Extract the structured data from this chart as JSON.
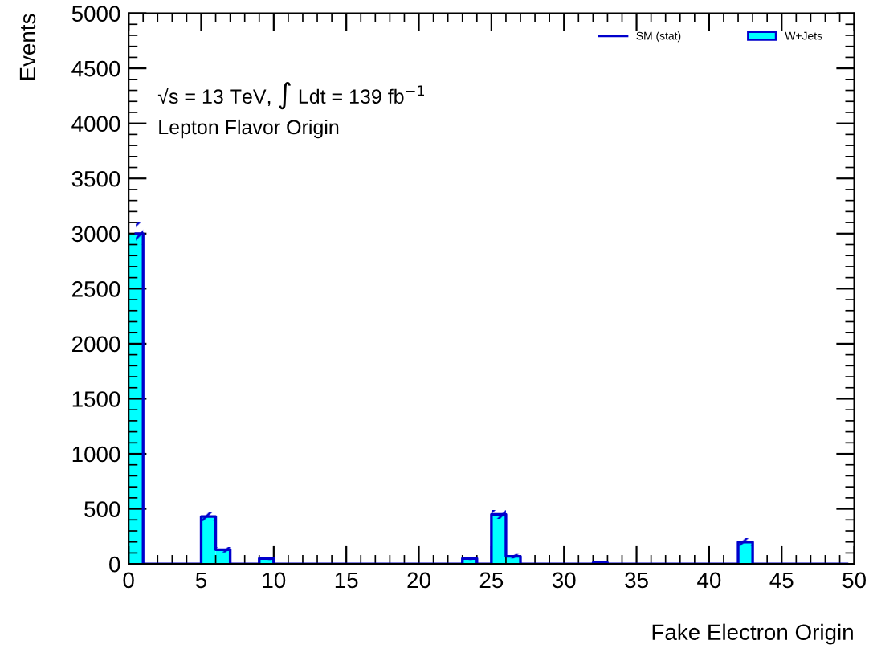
{
  "chart_data": {
    "type": "histogram",
    "xlabel": "Fake Electron Origin",
    "ylabel": "Events",
    "annotations": [
      "√s = 13 TeV, ∫ Ldt = 139 fb$^{−1}$",
      "Lepton Flavor Origin"
    ],
    "bins": [
      0,
      1,
      2,
      3,
      4,
      5,
      6,
      7,
      8,
      9,
      10,
      11,
      12,
      13,
      14,
      15,
      16,
      17,
      18,
      19,
      20,
      21,
      22,
      23,
      24,
      25,
      26,
      27,
      28,
      29,
      30,
      31,
      32,
      33,
      34,
      35,
      36,
      37,
      38,
      39,
      40,
      41,
      42,
      43,
      44,
      45,
      46,
      47,
      48,
      49,
      50
    ],
    "series": [
      {
        "name": "W+Jets",
        "color": "#00ffff",
        "values": [
          3000,
          0,
          0,
          0,
          0,
          430,
          130,
          0,
          0,
          50,
          0,
          0,
          0,
          0,
          0,
          0,
          0,
          0,
          0,
          0,
          0,
          0,
          0,
          50,
          0,
          450,
          70,
          0,
          0,
          0,
          0,
          0,
          10,
          0,
          0,
          0,
          0,
          0,
          0,
          0,
          0,
          0,
          200,
          0,
          0,
          0,
          0,
          0,
          0,
          0
        ]
      },
      {
        "name": "SM (stat)",
        "type": "step",
        "color": "#0000cc",
        "x": [
          0.5,
          1.5,
          2.5,
          3.5,
          4.5,
          5.5,
          6.5,
          7.5,
          8.5,
          9.5,
          10.5,
          11.5,
          12.5,
          13.5,
          14.5,
          15.5,
          16.5,
          17.5,
          18.5,
          19.5,
          20.5,
          21.5,
          22.5,
          23.5,
          24.5,
          25.5,
          26.5,
          27.5,
          28.5,
          29.5,
          30.5,
          31.5,
          32.5,
          33.5,
          34.5,
          35.5,
          36.5,
          37.5,
          38.5,
          39.5,
          40.5,
          41.5,
          42.5,
          43.5,
          44.5,
          45.5,
          46.5,
          47.5,
          48.5,
          49.5
        ],
        "values": [
          3000,
          0,
          0,
          0,
          0,
          430,
          130,
          0,
          0,
          50,
          0,
          0,
          0,
          0,
          0,
          0,
          0,
          0,
          0,
          0,
          0,
          0,
          0,
          50,
          0,
          450,
          70,
          0,
          0,
          0,
          0,
          0,
          10,
          0,
          0,
          0,
          0,
          0,
          0,
          0,
          0,
          0,
          200,
          0,
          0,
          0,
          0,
          0,
          0,
          0
        ],
        "lower": [
          2900,
          0,
          0,
          0,
          0,
          390,
          105,
          0,
          0,
          35,
          0,
          0,
          0,
          0,
          0,
          0,
          0,
          0,
          0,
          0,
          0,
          0,
          0,
          35,
          0,
          410,
          50,
          0,
          0,
          0,
          0,
          0,
          10,
          0,
          0,
          0,
          0,
          0,
          0,
          0,
          0,
          0,
          165,
          0,
          0,
          0,
          0,
          0,
          0,
          0
        ],
        "upper": [
          3100,
          0,
          0,
          0,
          0,
          470,
          155,
          0,
          0,
          65,
          0,
          0,
          0,
          0,
          0,
          0,
          0,
          0,
          0,
          0,
          0,
          0,
          0,
          65,
          0,
          490,
          90,
          0,
          0,
          0,
          0,
          0,
          10,
          0,
          0,
          0,
          0,
          0,
          0,
          0,
          0,
          0,
          235,
          0,
          0,
          0,
          0,
          0,
          0,
          0
        ]
      }
    ],
    "xlim": [
      0,
      50
    ],
    "xticks": [
      0,
      5,
      10,
      15,
      20,
      25,
      30,
      35,
      40,
      45,
      50
    ],
    "ylim": [
      0,
      5000
    ],
    "yticks": [
      0,
      500,
      1000,
      1500,
      2000,
      2500,
      3000,
      3500,
      4000,
      4500,
      5000
    ],
    "legend": "top right"
  }
}
